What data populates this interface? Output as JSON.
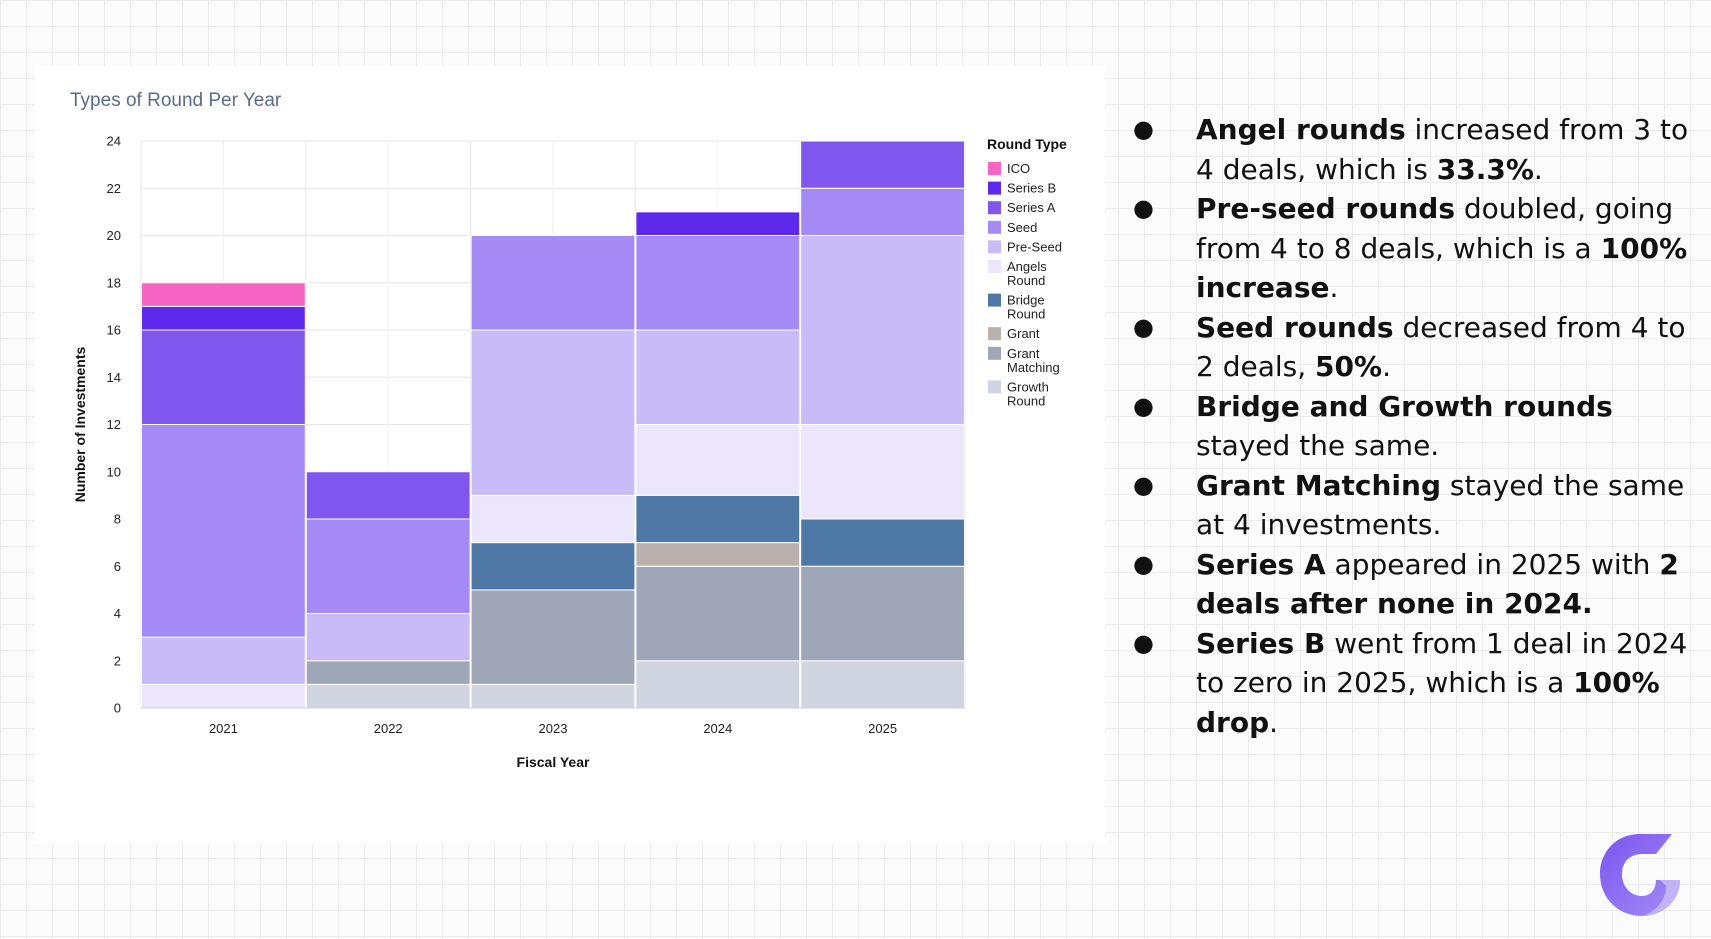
{
  "colors": {
    "ICO": "#f765c2",
    "Series B": "#5f28ed",
    "Series A": "#7f56ee",
    "Seed": "#a38af4",
    "Pre-Seed": "#c9baf8",
    "Angels Round": "#ebe6fb",
    "Bridge Round": "#4e79a7",
    "Grant": "#bab0ac",
    "Grant Matching": "#9ea6b7",
    "Growth Round": "#d1d5e1"
  },
  "chart_data": {
    "type": "bar",
    "stacked": true,
    "title": "Types of Round Per Year",
    "xlabel": "Fiscal Year",
    "ylabel": "Number of Investments",
    "ylim": [
      0,
      24
    ],
    "yticks": [
      0,
      2,
      4,
      6,
      8,
      10,
      12,
      14,
      16,
      18,
      20,
      22,
      24
    ],
    "categories": [
      "2021",
      "2022",
      "2023",
      "2024",
      "2025"
    ],
    "legend_title": "Round Type",
    "legend_position": "right",
    "series": [
      {
        "name": "Growth Round",
        "legend_lines": [
          "Growth",
          "Round"
        ],
        "values": [
          0,
          1,
          1,
          2,
          2
        ]
      },
      {
        "name": "Grant Matching",
        "legend_lines": [
          "Grant",
          "Matching"
        ],
        "values": [
          0,
          1,
          4,
          4,
          4
        ]
      },
      {
        "name": "Grant",
        "legend_lines": [
          "Grant"
        ],
        "values": [
          0,
          0,
          0,
          1,
          0
        ]
      },
      {
        "name": "Bridge Round",
        "legend_lines": [
          "Bridge",
          "Round"
        ],
        "values": [
          0,
          0,
          2,
          2,
          2
        ]
      },
      {
        "name": "Angels Round",
        "legend_lines": [
          "Angels",
          "Round"
        ],
        "values": [
          1,
          0,
          2,
          3,
          4
        ]
      },
      {
        "name": "Pre-Seed",
        "legend_lines": [
          "Pre-Seed"
        ],
        "values": [
          2,
          2,
          7,
          4,
          8
        ]
      },
      {
        "name": "Seed",
        "legend_lines": [
          "Seed"
        ],
        "values": [
          9,
          4,
          4,
          4,
          2
        ]
      },
      {
        "name": "Series A",
        "legend_lines": [
          "Series A"
        ],
        "values": [
          4,
          2,
          0,
          0,
          2
        ]
      },
      {
        "name": "Series B",
        "legend_lines": [
          "Series B"
        ],
        "values": [
          1,
          0,
          0,
          1,
          0
        ]
      },
      {
        "name": "ICO",
        "legend_lines": [
          "ICO"
        ],
        "values": [
          1,
          0,
          0,
          0,
          0
        ]
      }
    ],
    "legend_order": [
      "ICO",
      "Series B",
      "Series A",
      "Seed",
      "Pre-Seed",
      "Angels Round",
      "Bridge Round",
      "Grant",
      "Grant Matching",
      "Growth Round"
    ]
  },
  "insights": [
    {
      "bold": "Angel rounds",
      "text": " increased from 3 to 4 deals, which is ",
      "bold2": "33.3%",
      "text2": "."
    },
    {
      "bold": "Pre-seed rounds",
      "text": " doubled, going from 4 to 8 deals, which is a ",
      "bold2": "100% increase",
      "text2": "."
    },
    {
      "bold": "Seed rounds",
      "text": " decreased from 4 to 2 deals, ",
      "bold2": "50%",
      "text2": "."
    },
    {
      "bold": "Bridge and Growth rounds",
      "text": " stayed the same.",
      "bold2": "",
      "text2": ""
    },
    {
      "bold": "Grant Matching",
      "text": " stayed the same at 4 investments.",
      "bold2": "",
      "text2": ""
    },
    {
      "bold": "Series A",
      "text": " appeared in 2025 with ",
      "bold2": "2 deals after none in 2024.",
      "text2": ""
    },
    {
      "bold": "Series B",
      "text": " went from 1 deal in 2024 to zero in 2025, which is a ",
      "bold2": "100% drop",
      "text2": "."
    }
  ],
  "bullet_glyph": "●",
  "logo_icon": "brand-logo-icon"
}
